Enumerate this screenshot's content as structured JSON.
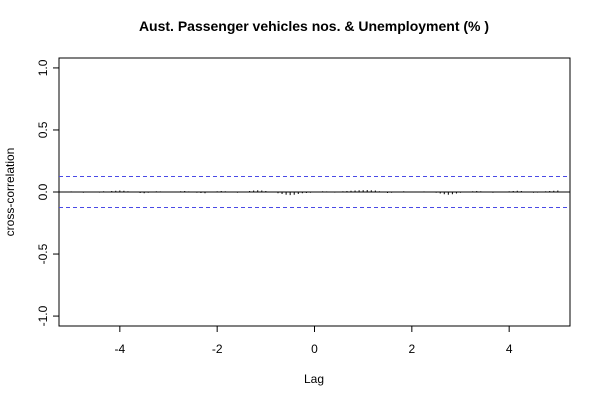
{
  "chart_data": {
    "type": "bar",
    "title": "Aust. Passenger vehicles nos. & Unemployment (% )",
    "xlabel": "Lag",
    "ylabel": "cross-correlation",
    "xlim": [
      -5.25,
      5.25
    ],
    "ylim": [
      -1.08,
      1.08
    ],
    "x_ticks": [
      -4,
      -2,
      0,
      2,
      4
    ],
    "x_tick_labels": [
      "-4",
      "-2",
      "0",
      "2",
      "4"
    ],
    "y_ticks": [
      -1.0,
      -0.5,
      0.0,
      0.5,
      1.0
    ],
    "y_tick_labels": [
      "-1.0",
      "-0.5",
      "0.0",
      "0.5",
      "1.0"
    ],
    "confidence_band": 0.125,
    "band_color": "#4a4ae6",
    "lag_step": 0.0833333333,
    "lags": [
      -5.0,
      -4.9167,
      -4.8333,
      -4.75,
      -4.6667,
      -4.5833,
      -4.5,
      -4.4167,
      -4.3333,
      -4.25,
      -4.1667,
      -4.0833,
      -4.0,
      -3.9167,
      -3.8333,
      -3.75,
      -3.6667,
      -3.5833,
      -3.5,
      -3.4167,
      -3.3333,
      -3.25,
      -3.1667,
      -3.0833,
      -3.0,
      -2.9167,
      -2.8333,
      -2.75,
      -2.6667,
      -2.5833,
      -2.5,
      -2.4167,
      -2.3333,
      -2.25,
      -2.1667,
      -2.0833,
      -2.0,
      -1.9167,
      -1.8333,
      -1.75,
      -1.6667,
      -1.5833,
      -1.5,
      -1.4167,
      -1.3333,
      -1.25,
      -1.1667,
      -1.0833,
      -1.0,
      -0.9167,
      -0.8333,
      -0.75,
      -0.6667,
      -0.5833,
      -0.5,
      -0.4167,
      -0.3333,
      -0.25,
      -0.1667,
      -0.0833,
      0.0,
      0.0833,
      0.1667,
      0.25,
      0.3333,
      0.4167,
      0.5,
      0.5833,
      0.6667,
      0.75,
      0.8333,
      0.9167,
      1.0,
      1.0833,
      1.1667,
      1.25,
      1.3333,
      1.4167,
      1.5,
      1.5833,
      1.6667,
      1.75,
      1.8333,
      1.9167,
      2.0,
      2.0833,
      2.1667,
      2.25,
      2.3333,
      2.4167,
      2.5,
      2.5833,
      2.6667,
      2.75,
      2.8333,
      2.9167,
      3.0,
      3.0833,
      3.1667,
      3.25,
      3.3333,
      3.4167,
      3.5,
      3.5833,
      3.6667,
      3.75,
      3.8333,
      3.9167,
      4.0,
      4.0833,
      4.1667,
      4.25,
      4.3333,
      4.4167,
      4.5,
      4.5833,
      4.6667,
      4.75,
      4.8333,
      4.9167,
      5.0
    ],
    "values": [
      0.005,
      -0.003,
      0.004,
      -0.006,
      0.003,
      -0.004,
      0.002,
      -0.005,
      0.006,
      -0.002,
      0.008,
      0.01,
      0.012,
      0.01,
      0.006,
      0.003,
      -0.004,
      -0.008,
      -0.01,
      -0.006,
      0.004,
      0.006,
      0.005,
      -0.004,
      -0.003,
      0.002,
      0.004,
      0.006,
      0.008,
      0.005,
      -0.002,
      -0.006,
      -0.008,
      -0.01,
      -0.004,
      0.002,
      0.006,
      0.008,
      0.006,
      -0.002,
      -0.004,
      -0.006,
      -0.004,
      0.004,
      0.008,
      0.012,
      0.014,
      0.012,
      0.008,
      0.003,
      -0.004,
      -0.01,
      -0.016,
      -0.022,
      -0.025,
      -0.022,
      -0.016,
      -0.01,
      -0.008,
      -0.006,
      -0.004,
      0.003,
      0.006,
      0.005,
      -0.003,
      -0.005,
      0.003,
      0.006,
      0.008,
      0.01,
      0.012,
      0.014,
      0.015,
      0.016,
      0.014,
      0.012,
      0.006,
      -0.004,
      -0.008,
      -0.006,
      -0.004,
      0.004,
      0.006,
      0.004,
      -0.003,
      -0.004,
      0.003,
      0.005,
      0.004,
      -0.004,
      -0.006,
      -0.012,
      -0.018,
      -0.022,
      -0.018,
      -0.012,
      -0.006,
      -0.003,
      0.004,
      0.006,
      0.008,
      0.006,
      0.004,
      -0.004,
      -0.006,
      -0.004,
      -0.003,
      0.004,
      0.006,
      0.008,
      0.01,
      0.008,
      0.004,
      -0.004,
      -0.006,
      -0.005,
      0.004,
      0.006,
      0.008,
      0.01,
      0.012
    ]
  }
}
